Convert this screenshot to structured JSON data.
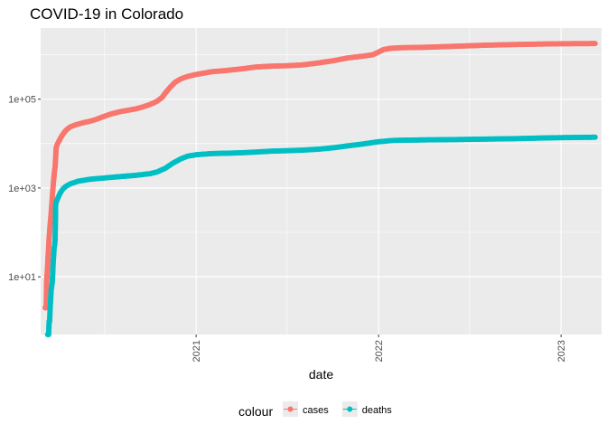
{
  "chart_data": {
    "type": "line",
    "title": "COVID-19 in Colorado",
    "xlabel": "date",
    "ylabel": "",
    "x_scale": "date",
    "y_scale": "log10",
    "xlim": [
      "2020-02-25",
      "2023-03-23"
    ],
    "ylim": [
      0.5,
      4000000
    ],
    "grid": true,
    "legend_position": "bottom",
    "legend_title": "colour",
    "x_ticks": [
      {
        "value": "2021-01-01",
        "label": "2021"
      },
      {
        "value": "2022-01-01",
        "label": "2022"
      },
      {
        "value": "2023-01-01",
        "label": "2023"
      }
    ],
    "x_minor_ticks": [
      "2020-07-02",
      "2021-07-02",
      "2022-07-02"
    ],
    "y_ticks": [
      {
        "value": 10,
        "label": "1e+01"
      },
      {
        "value": 1000,
        "label": "1e+03"
      },
      {
        "value": 100000,
        "label": "1e+05"
      }
    ],
    "y_minor_ticks": [
      100,
      10000,
      1000000
    ],
    "series": [
      {
        "name": "cases",
        "color": "#F8766D",
        "points": [
          [
            "2020-03-05",
            2
          ],
          [
            "2020-03-07",
            2
          ],
          [
            "2020-03-08",
            8
          ],
          [
            "2020-03-09",
            12
          ],
          [
            "2020-03-10",
            18
          ],
          [
            "2020-03-11",
            30
          ],
          [
            "2020-03-12",
            45
          ],
          [
            "2020-03-13",
            75
          ],
          [
            "2020-03-14",
            110
          ],
          [
            "2020-03-15",
            150
          ],
          [
            "2020-03-16",
            200
          ],
          [
            "2020-03-17",
            280
          ],
          [
            "2020-03-18",
            400
          ],
          [
            "2020-03-19",
            560
          ],
          [
            "2020-03-20",
            800
          ],
          [
            "2020-03-21",
            1100
          ],
          [
            "2020-03-22",
            1500
          ],
          [
            "2020-03-23",
            2000
          ],
          [
            "2020-03-24",
            2600
          ],
          [
            "2020-03-25",
            3000
          ],
          [
            "2020-03-27",
            8000
          ],
          [
            "2020-03-29",
            9500
          ],
          [
            "2020-04-01",
            11000
          ],
          [
            "2020-04-05",
            13500
          ],
          [
            "2020-04-10",
            16500
          ],
          [
            "2020-04-15",
            19500
          ],
          [
            "2020-04-20",
            22000
          ],
          [
            "2020-04-25",
            24000
          ],
          [
            "2020-05-01",
            25500
          ],
          [
            "2020-05-10",
            27500
          ],
          [
            "2020-05-20",
            29500
          ],
          [
            "2020-06-01",
            31500
          ],
          [
            "2020-06-15",
            35000
          ],
          [
            "2020-07-01",
            41000
          ],
          [
            "2020-07-15",
            46500
          ],
          [
            "2020-08-01",
            52000
          ],
          [
            "2020-08-15",
            55500
          ],
          [
            "2020-09-01",
            60000
          ],
          [
            "2020-09-15",
            66000
          ],
          [
            "2020-10-01",
            76000
          ],
          [
            "2020-10-15",
            90000
          ],
          [
            "2020-10-25",
            110000
          ],
          [
            "2020-11-01",
            140000
          ],
          [
            "2020-11-10",
            185000
          ],
          [
            "2020-11-20",
            240000
          ],
          [
            "2020-12-01",
            285000
          ],
          [
            "2020-12-15",
            325000
          ],
          [
            "2021-01-01",
            360000
          ],
          [
            "2021-02-01",
            415000
          ],
          [
            "2021-03-01",
            440000
          ],
          [
            "2021-04-01",
            480000
          ],
          [
            "2021-05-01",
            530000
          ],
          [
            "2021-06-01",
            555000
          ],
          [
            "2021-07-01",
            565000
          ],
          [
            "2021-08-01",
            590000
          ],
          [
            "2021-09-01",
            650000
          ],
          [
            "2021-10-01",
            730000
          ],
          [
            "2021-11-01",
            850000
          ],
          [
            "2021-12-01",
            930000
          ],
          [
            "2021-12-20",
            1000000
          ],
          [
            "2022-01-01",
            1150000
          ],
          [
            "2022-01-10",
            1300000
          ],
          [
            "2022-01-25",
            1400000
          ],
          [
            "2022-02-15",
            1440000
          ],
          [
            "2022-04-01",
            1470000
          ],
          [
            "2022-06-01",
            1550000
          ],
          [
            "2022-08-01",
            1640000
          ],
          [
            "2022-10-01",
            1700000
          ],
          [
            "2022-12-01",
            1750000
          ],
          [
            "2023-01-01",
            1770000
          ],
          [
            "2023-03-10",
            1790000
          ]
        ]
      },
      {
        "name": "deaths",
        "color": "#00BFC4",
        "points": [
          [
            "2020-03-10",
            0.5
          ],
          [
            "2020-03-12",
            0.5
          ],
          [
            "2020-03-13",
            1
          ],
          [
            "2020-03-14",
            1
          ],
          [
            "2020-03-15",
            2
          ],
          [
            "2020-03-16",
            3
          ],
          [
            "2020-03-17",
            5
          ],
          [
            "2020-03-18",
            6
          ],
          [
            "2020-03-19",
            7
          ],
          [
            "2020-03-20",
            11
          ],
          [
            "2020-03-21",
            20
          ],
          [
            "2020-03-22",
            30
          ],
          [
            "2020-03-23",
            45
          ],
          [
            "2020-03-24",
            50
          ],
          [
            "2020-03-25",
            70
          ],
          [
            "2020-03-26",
            420
          ],
          [
            "2020-03-27",
            470
          ],
          [
            "2020-03-28",
            510
          ],
          [
            "2020-04-01",
            650
          ],
          [
            "2020-04-05",
            800
          ],
          [
            "2020-04-10",
            960
          ],
          [
            "2020-04-15",
            1080
          ],
          [
            "2020-04-25",
            1250
          ],
          [
            "2020-05-10",
            1420
          ],
          [
            "2020-06-01",
            1560
          ],
          [
            "2020-07-01",
            1680
          ],
          [
            "2020-08-01",
            1800
          ],
          [
            "2020-09-01",
            1920
          ],
          [
            "2020-10-01",
            2100
          ],
          [
            "2020-10-15",
            2300
          ],
          [
            "2020-11-01",
            2800
          ],
          [
            "2020-11-15",
            3600
          ],
          [
            "2020-12-01",
            4500
          ],
          [
            "2020-12-15",
            5200
          ],
          [
            "2021-01-01",
            5600
          ],
          [
            "2021-02-01",
            5950
          ],
          [
            "2021-03-01",
            6050
          ],
          [
            "2021-04-01",
            6200
          ],
          [
            "2021-05-01",
            6450
          ],
          [
            "2021-06-01",
            6750
          ],
          [
            "2021-07-01",
            6900
          ],
          [
            "2021-08-01",
            7100
          ],
          [
            "2021-09-01",
            7450
          ],
          [
            "2021-10-01",
            8000
          ],
          [
            "2021-11-01",
            8900
          ],
          [
            "2021-12-01",
            9800
          ],
          [
            "2022-01-01",
            11000
          ],
          [
            "2022-02-01",
            11800
          ],
          [
            "2022-04-01",
            12100
          ],
          [
            "2022-06-01",
            12300
          ],
          [
            "2022-08-01",
            12600
          ],
          [
            "2022-10-01",
            12900
          ],
          [
            "2022-12-01",
            13400
          ],
          [
            "2023-01-01",
            13600
          ],
          [
            "2023-03-10",
            13900
          ]
        ]
      }
    ]
  }
}
